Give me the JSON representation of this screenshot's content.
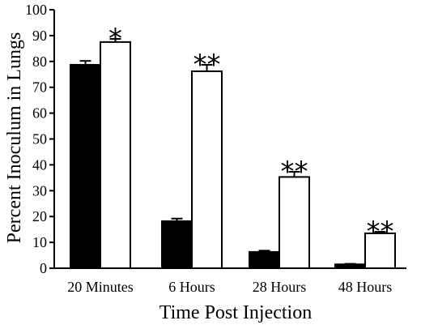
{
  "chart_data": {
    "type": "bar",
    "title": "",
    "xlabel": "Time Post Injection",
    "ylabel": "Percent Inoculum in Lungs",
    "ylim": [
      0,
      100
    ],
    "yticks": [
      "0",
      "10",
      "20",
      "30",
      "40",
      "50",
      "60",
      "70",
      "80",
      "90",
      "100"
    ],
    "grid": false,
    "legend": "none",
    "categories": [
      "20 Minutes",
      "6 Hours",
      "28 Hours",
      "48 Hours"
    ],
    "series": [
      {
        "values": [
          78.7,
          18.2,
          6.3,
          1.5
        ],
        "errors": [
          1.5,
          1.0,
          0.5,
          0.2
        ],
        "fill": "#000000"
      },
      {
        "values": [
          87.5,
          76.2,
          35.3,
          13.5
        ],
        "errors": [
          1.2,
          2.5,
          2.0,
          0.6
        ],
        "fill": "#ffffff"
      }
    ],
    "annotations": [
      "*",
      "**",
      "**",
      "**"
    ]
  }
}
